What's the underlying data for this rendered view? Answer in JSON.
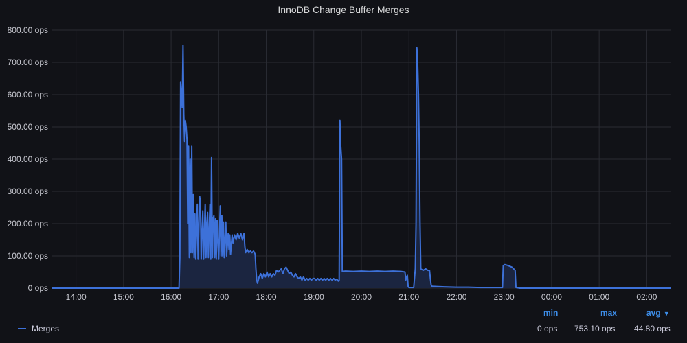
{
  "panel": {
    "title": "InnoDB Change Buffer Merges"
  },
  "colors": {
    "series": "#3d71d9",
    "fill": "#1b2540",
    "grid": "#2a2c33",
    "axis_text": "#c7c8d0",
    "background": "#111217",
    "legend_header": "#3d8de8"
  },
  "legend": {
    "series_name": "Merges",
    "headers": {
      "min": "min",
      "max": "max",
      "avg": "avg"
    },
    "values": {
      "min": "0 ops",
      "max": "753.10 ops",
      "avg": "44.80 ops"
    },
    "sort_icon": "chevron-down-icon"
  },
  "chart_data": {
    "type": "area",
    "title": "InnoDB Change Buffer Merges",
    "xlabel": "",
    "ylabel": "",
    "y_unit": "ops",
    "ylim": [
      0,
      800
    ],
    "y_ticks": [
      0,
      100,
      200,
      300,
      400,
      500,
      600,
      700,
      800
    ],
    "y_tick_labels": [
      "0 ops",
      "100.00 ops",
      "200.00 ops",
      "300.00 ops",
      "400.00 ops",
      "500.00 ops",
      "600.00 ops",
      "700.00 ops",
      "800.00 ops"
    ],
    "x_start": "13:30",
    "x_end": "02:30",
    "x_ticks": [
      "14:00",
      "15:00",
      "16:00",
      "17:00",
      "18:00",
      "19:00",
      "20:00",
      "21:00",
      "22:00",
      "23:00",
      "00:00",
      "01:00",
      "02:00"
    ],
    "grid": true,
    "legend_position": "bottom",
    "series": [
      {
        "name": "Merges",
        "points": [
          [
            "13:30",
            0
          ],
          [
            "16:10",
            0
          ],
          [
            "16:11",
            95
          ],
          [
            "16:12",
            640
          ],
          [
            "16:13",
            600
          ],
          [
            "16:14",
            560
          ],
          [
            "16:15",
            753
          ],
          [
            "16:16",
            540
          ],
          [
            "16:17",
            455
          ],
          [
            "16:18",
            520
          ],
          [
            "16:19",
            500
          ],
          [
            "16:20",
            460
          ],
          [
            "16:21",
            200
          ],
          [
            "16:22",
            440
          ],
          [
            "16:23",
            95
          ],
          [
            "16:24",
            400
          ],
          [
            "16:25",
            110
          ],
          [
            "16:26",
            440
          ],
          [
            "16:27",
            110
          ],
          [
            "16:28",
            290
          ],
          [
            "16:29",
            95
          ],
          [
            "16:30",
            230
          ],
          [
            "16:31",
            90
          ],
          [
            "16:33",
            260
          ],
          [
            "16:34",
            90
          ],
          [
            "16:36",
            285
          ],
          [
            "16:37",
            265
          ],
          [
            "16:38",
            90
          ],
          [
            "16:40",
            240
          ],
          [
            "16:41",
            90
          ],
          [
            "16:43",
            260
          ],
          [
            "16:44",
            95
          ],
          [
            "16:45",
            200
          ],
          [
            "16:46",
            235
          ],
          [
            "16:47",
            95
          ],
          [
            "16:49",
            260
          ],
          [
            "16:50",
            90
          ],
          [
            "16:51",
            405
          ],
          [
            "16:52",
            95
          ],
          [
            "16:53",
            215
          ],
          [
            "16:54",
            225
          ],
          [
            "16:55",
            95
          ],
          [
            "16:56",
            215
          ],
          [
            "16:57",
            90
          ],
          [
            "16:58",
            210
          ],
          [
            "17:00",
            90
          ],
          [
            "17:02",
            255
          ],
          [
            "17:03",
            100
          ],
          [
            "17:04",
            225
          ],
          [
            "17:05",
            100
          ],
          [
            "17:06",
            205
          ],
          [
            "17:07",
            95
          ],
          [
            "17:09",
            205
          ],
          [
            "17:10",
            100
          ],
          [
            "17:12",
            170
          ],
          [
            "17:13",
            120
          ],
          [
            "17:14",
            165
          ],
          [
            "17:15",
            105
          ],
          [
            "17:17",
            165
          ],
          [
            "17:18",
            140
          ],
          [
            "17:20",
            165
          ],
          [
            "17:22",
            150
          ],
          [
            "17:24",
            170
          ],
          [
            "17:26",
            155
          ],
          [
            "17:28",
            170
          ],
          [
            "17:30",
            150
          ],
          [
            "17:32",
            170
          ],
          [
            "17:33",
            130
          ],
          [
            "17:34",
            110
          ],
          [
            "17:36",
            120
          ],
          [
            "17:38",
            110
          ],
          [
            "17:40",
            115
          ],
          [
            "17:42",
            110
          ],
          [
            "17:44",
            115
          ],
          [
            "17:46",
            105
          ],
          [
            "17:47",
            60
          ],
          [
            "17:48",
            25
          ],
          [
            "17:49",
            15
          ],
          [
            "17:51",
            35
          ],
          [
            "17:53",
            45
          ],
          [
            "17:55",
            30
          ],
          [
            "17:57",
            45
          ],
          [
            "17:59",
            35
          ],
          [
            "18:01",
            50
          ],
          [
            "18:03",
            35
          ],
          [
            "18:05",
            45
          ],
          [
            "18:07",
            35
          ],
          [
            "18:09",
            45
          ],
          [
            "18:11",
            40
          ],
          [
            "18:13",
            55
          ],
          [
            "18:15",
            50
          ],
          [
            "18:17",
            55
          ],
          [
            "18:19",
            60
          ],
          [
            "18:21",
            45
          ],
          [
            "18:23",
            60
          ],
          [
            "18:25",
            65
          ],
          [
            "18:27",
            55
          ],
          [
            "18:29",
            45
          ],
          [
            "18:31",
            50
          ],
          [
            "18:33",
            40
          ],
          [
            "18:35",
            35
          ],
          [
            "18:37",
            45
          ],
          [
            "18:39",
            35
          ],
          [
            "18:41",
            30
          ],
          [
            "18:43",
            35
          ],
          [
            "18:45",
            25
          ],
          [
            "18:47",
            35
          ],
          [
            "18:49",
            25
          ],
          [
            "18:51",
            30
          ],
          [
            "18:53",
            25
          ],
          [
            "18:55",
            30
          ],
          [
            "18:57",
            25
          ],
          [
            "18:59",
            30
          ],
          [
            "19:01",
            30
          ],
          [
            "19:03",
            25
          ],
          [
            "19:05",
            30
          ],
          [
            "19:07",
            25
          ],
          [
            "19:09",
            30
          ],
          [
            "19:11",
            25
          ],
          [
            "19:13",
            30
          ],
          [
            "19:15",
            25
          ],
          [
            "19:17",
            30
          ],
          [
            "19:19",
            25
          ],
          [
            "19:21",
            30
          ],
          [
            "19:23",
            25
          ],
          [
            "19:25",
            30
          ],
          [
            "19:27",
            25
          ],
          [
            "19:29",
            28
          ],
          [
            "19:31",
            22
          ],
          [
            "19:32",
            25
          ],
          [
            "19:33",
            520
          ],
          [
            "19:34",
            440
          ],
          [
            "19:35",
            400
          ],
          [
            "19:36",
            52
          ],
          [
            "19:40",
            53
          ],
          [
            "19:50",
            52
          ],
          [
            "20:00",
            53
          ],
          [
            "20:10",
            52
          ],
          [
            "20:20",
            53
          ],
          [
            "20:30",
            52
          ],
          [
            "20:40",
            53
          ],
          [
            "20:50",
            52
          ],
          [
            "20:55",
            50
          ],
          [
            "20:56",
            25
          ],
          [
            "20:58",
            40
          ],
          [
            "20:59",
            5
          ],
          [
            "21:00",
            2
          ],
          [
            "21:06",
            2
          ],
          [
            "21:07",
            30
          ],
          [
            "21:08",
            60
          ],
          [
            "21:09",
            200
          ],
          [
            "21:10",
            745
          ],
          [
            "21:11",
            700
          ],
          [
            "21:12",
            600
          ],
          [
            "21:13",
            450
          ],
          [
            "21:14",
            200
          ],
          [
            "21:15",
            60
          ],
          [
            "21:18",
            55
          ],
          [
            "21:21",
            60
          ],
          [
            "21:24",
            55
          ],
          [
            "21:26",
            55
          ],
          [
            "21:27",
            30
          ],
          [
            "21:28",
            10
          ],
          [
            "21:29",
            6
          ],
          [
            "21:35",
            5
          ],
          [
            "21:45",
            4
          ],
          [
            "22:00",
            3
          ],
          [
            "22:15",
            3
          ],
          [
            "22:30",
            2
          ],
          [
            "22:45",
            2
          ],
          [
            "22:58",
            2
          ],
          [
            "22:59",
            70
          ],
          [
            "23:01",
            73
          ],
          [
            "23:05",
            70
          ],
          [
            "23:10",
            65
          ],
          [
            "23:14",
            55
          ],
          [
            "23:15",
            2
          ],
          [
            "23:20",
            0
          ],
          [
            "02:30",
            0
          ]
        ]
      }
    ]
  }
}
